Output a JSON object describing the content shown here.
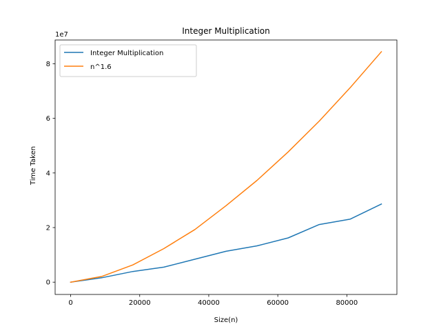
{
  "chart_data": {
    "type": "line",
    "title": "Integer Multiplication",
    "xlabel": "Size(n)",
    "ylabel": "Time Taken",
    "y_offset_text": "1e7",
    "xlim": [
      -4500,
      94500
    ],
    "ylim": [
      -4500000,
      88700000
    ],
    "xticks": [
      0,
      20000,
      40000,
      60000,
      80000
    ],
    "yticks": [
      0,
      20000000,
      40000000,
      60000000,
      80000000
    ],
    "xtick_labels": [
      "0",
      "20000",
      "40000",
      "60000",
      "80000"
    ],
    "ytick_labels": [
      "0",
      "2",
      "4",
      "6",
      "8"
    ],
    "grid": false,
    "legend_position": "top-left",
    "x": [
      0,
      9000,
      18000,
      27000,
      36000,
      45000,
      54000,
      63000,
      72000,
      81000,
      90000
    ],
    "series": [
      {
        "name": "Integer Multiplication",
        "color": "#1f77b4",
        "values": [
          0,
          1600000,
          3900000,
          5500000,
          8400000,
          11300000,
          13300000,
          16200000,
          21100000,
          23100000,
          28600000
        ]
      },
      {
        "name": "n^1.6",
        "color": "#ff7f0e",
        "values": [
          0,
          2100000,
          6300000,
          12300000,
          19300000,
          28000000,
          37300000,
          47700000,
          59000000,
          71300000,
          84400000
        ]
      }
    ]
  }
}
